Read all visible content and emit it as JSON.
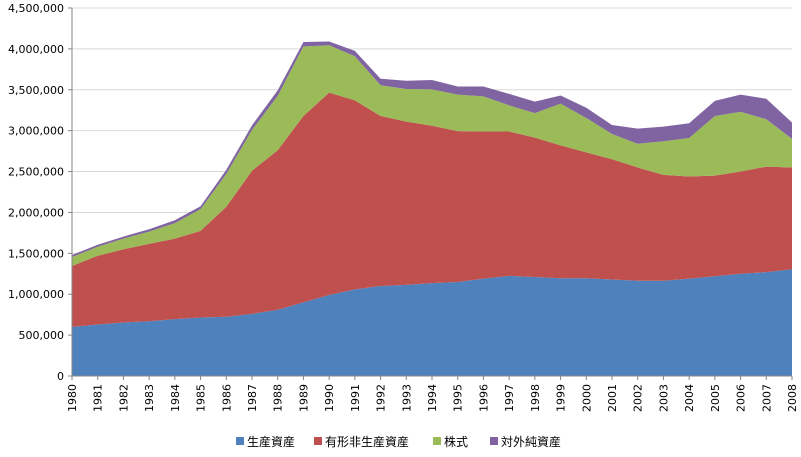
{
  "chart_data": {
    "type": "area",
    "stacked": true,
    "categories": [
      "1980",
      "1981",
      "1982",
      "1983",
      "1984",
      "1985",
      "1986",
      "1987",
      "1988",
      "1989",
      "1990",
      "1991",
      "1992",
      "1993",
      "1994",
      "1995",
      "1996",
      "1997",
      "1998",
      "1999",
      "2000",
      "2001",
      "2002",
      "2003",
      "2004",
      "2005",
      "2006",
      "2007",
      "2008"
    ],
    "ylim": [
      0,
      4500000
    ],
    "yticks": [
      0,
      500000,
      1000000,
      1500000,
      2000000,
      2500000,
      3000000,
      3500000,
      4000000,
      4500000
    ],
    "ytick_labels": [
      "0",
      "500,000",
      "1,000,000",
      "1,500,000",
      "2,000,000",
      "2,500,000",
      "3,000,000",
      "3,500,000",
      "4,000,000",
      "4,500,000"
    ],
    "grid": true,
    "legend_position": "bottom",
    "series": [
      {
        "name": "生産資産",
        "color": "#4f81bd",
        "values": [
          600000,
          630000,
          655000,
          670000,
          695000,
          715000,
          725000,
          760000,
          810000,
          900000,
          990000,
          1060000,
          1100000,
          1115000,
          1135000,
          1150000,
          1190000,
          1225000,
          1210000,
          1195000,
          1195000,
          1180000,
          1165000,
          1165000,
          1190000,
          1220000,
          1250000,
          1270000,
          1305000
        ]
      },
      {
        "name": "有形非生産資産",
        "color": "#c0504d",
        "values": [
          745000,
          840000,
          895000,
          945000,
          985000,
          1060000,
          1345000,
          1750000,
          1950000,
          2280000,
          2475000,
          2310000,
          2080000,
          1995000,
          1925000,
          1845000,
          1800000,
          1765000,
          1705000,
          1625000,
          1540000,
          1470000,
          1385000,
          1295000,
          1250000,
          1230000,
          1250000,
          1290000,
          1245000
        ]
      },
      {
        "name": "株式",
        "color": "#9bbb59",
        "values": [
          110000,
          110000,
          130000,
          150000,
          190000,
          265000,
          400000,
          500000,
          665000,
          850000,
          580000,
          540000,
          375000,
          400000,
          445000,
          445000,
          430000,
          320000,
          300000,
          510000,
          420000,
          310000,
          290000,
          410000,
          470000,
          730000,
          730000,
          580000,
          350000
        ]
      },
      {
        "name": "対外純資産",
        "color": "#8064a2",
        "values": [
          25000,
          25000,
          25000,
          30000,
          35000,
          35000,
          50000,
          55000,
          70000,
          55000,
          45000,
          65000,
          80000,
          100000,
          115000,
          100000,
          120000,
          140000,
          140000,
          100000,
          125000,
          110000,
          185000,
          180000,
          180000,
          185000,
          210000,
          250000,
          200000
        ]
      }
    ]
  }
}
